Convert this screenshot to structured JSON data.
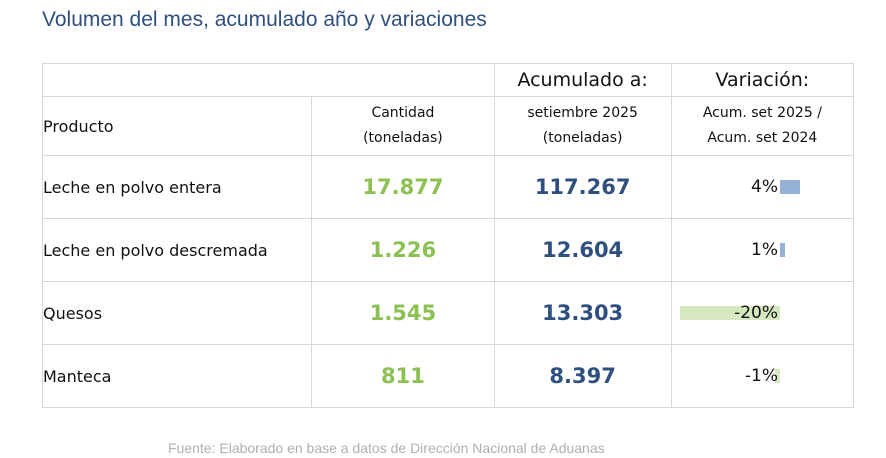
{
  "title": "Volumen del mes, acumulado año y variaciones",
  "header": {
    "producto": "Producto",
    "cantidad": "Cantidad",
    "cantidad_unit": "(toneladas)",
    "acumulado": "Acumulado a:",
    "acumulado_period": "setiembre 2025",
    "acumulado_unit": "(toneladas)",
    "variacion": "Variación:",
    "variacion_line1": "Acum. set 2025 /",
    "variacion_line2": "Acum. set 2024"
  },
  "rows": [
    {
      "producto": "Leche en polvo entera",
      "cantidad": "17.877",
      "acumulado": "117.267",
      "variacion": "4%",
      "variacion_value": 4
    },
    {
      "producto": "Leche en polvo descremada",
      "cantidad": "1.226",
      "acumulado": "12.604",
      "variacion": "1%",
      "variacion_value": 1
    },
    {
      "producto": "Quesos",
      "cantidad": "1.545",
      "acumulado": "13.303",
      "variacion": "-20%",
      "variacion_value": -20
    },
    {
      "producto": "Manteca",
      "cantidad": "811",
      "acumulado": "8.397",
      "variacion": "-1%",
      "variacion_value": -1
    }
  ],
  "colors": {
    "title": "#2f4f7f",
    "cantidad": "#8cc152",
    "acumulado": "#2f4f7f",
    "bar_positive": "#95b3d7",
    "bar_negative": "#d5e8bf"
  },
  "source": "Fuente: Elaborado en base a datos de Dirección Nacional de Aduanas"
}
